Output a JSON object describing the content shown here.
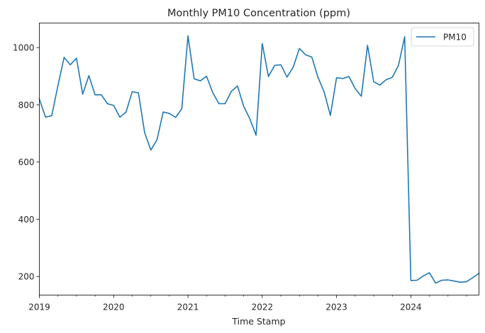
{
  "chart_data": {
    "type": "line",
    "title": "Monthly PM10 Concentration (ppm)",
    "xlabel": "Time Stamp",
    "ylabel": "",
    "x_start": "2019-01",
    "x_end": "2024-12",
    "x_ticks": [
      "2019",
      "2020",
      "2021",
      "2022",
      "2023",
      "2024"
    ],
    "y_ticks": [
      200,
      400,
      600,
      800,
      1000
    ],
    "ylim": [
      135,
      1086
    ],
    "grid": false,
    "legend_position": "top-right",
    "series": [
      {
        "name": "PM10",
        "color": "#1f77b4",
        "x": [
          "2019-01",
          "2019-02",
          "2019-03",
          "2019-04",
          "2019-05",
          "2019-06",
          "2019-07",
          "2019-08",
          "2019-09",
          "2019-10",
          "2019-11",
          "2019-12",
          "2020-01",
          "2020-02",
          "2020-03",
          "2020-04",
          "2020-05",
          "2020-06",
          "2020-07",
          "2020-08",
          "2020-09",
          "2020-10",
          "2020-11",
          "2020-12",
          "2021-01",
          "2021-02",
          "2021-03",
          "2021-04",
          "2021-05",
          "2021-06",
          "2021-07",
          "2021-08",
          "2021-09",
          "2021-10",
          "2021-11",
          "2021-12",
          "2022-01",
          "2022-02",
          "2022-03",
          "2022-04",
          "2022-05",
          "2022-06",
          "2022-07",
          "2022-08",
          "2022-09",
          "2022-10",
          "2022-11",
          "2022-12",
          "2023-01",
          "2023-02",
          "2023-03",
          "2023-04",
          "2023-05",
          "2023-06",
          "2023-07",
          "2023-08",
          "2023-09",
          "2023-10",
          "2023-11",
          "2023-12",
          "2024-01",
          "2024-02",
          "2024-03",
          "2024-04",
          "2024-05",
          "2024-06",
          "2024-07",
          "2024-08",
          "2024-09",
          "2024-10",
          "2024-11",
          "2024-12"
        ],
        "values": [
          820,
          757,
          762,
          867,
          966,
          940,
          963,
          837,
          902,
          835,
          835,
          804,
          798,
          757,
          775,
          846,
          842,
          703,
          642,
          678,
          775,
          770,
          756,
          786,
          1041,
          891,
          884,
          900,
          843,
          804,
          804,
          847,
          866,
          795,
          751,
          694,
          1014,
          899,
          938,
          940,
          897,
          932,
          997,
          975,
          967,
          896,
          845,
          763,
          895,
          892,
          899,
          857,
          830,
          1008,
          881,
          869,
          888,
          896,
          938,
          1038,
          186,
          187,
          202,
          213,
          177,
          187,
          188,
          184,
          180,
          182,
          196,
          211
        ]
      }
    ]
  }
}
